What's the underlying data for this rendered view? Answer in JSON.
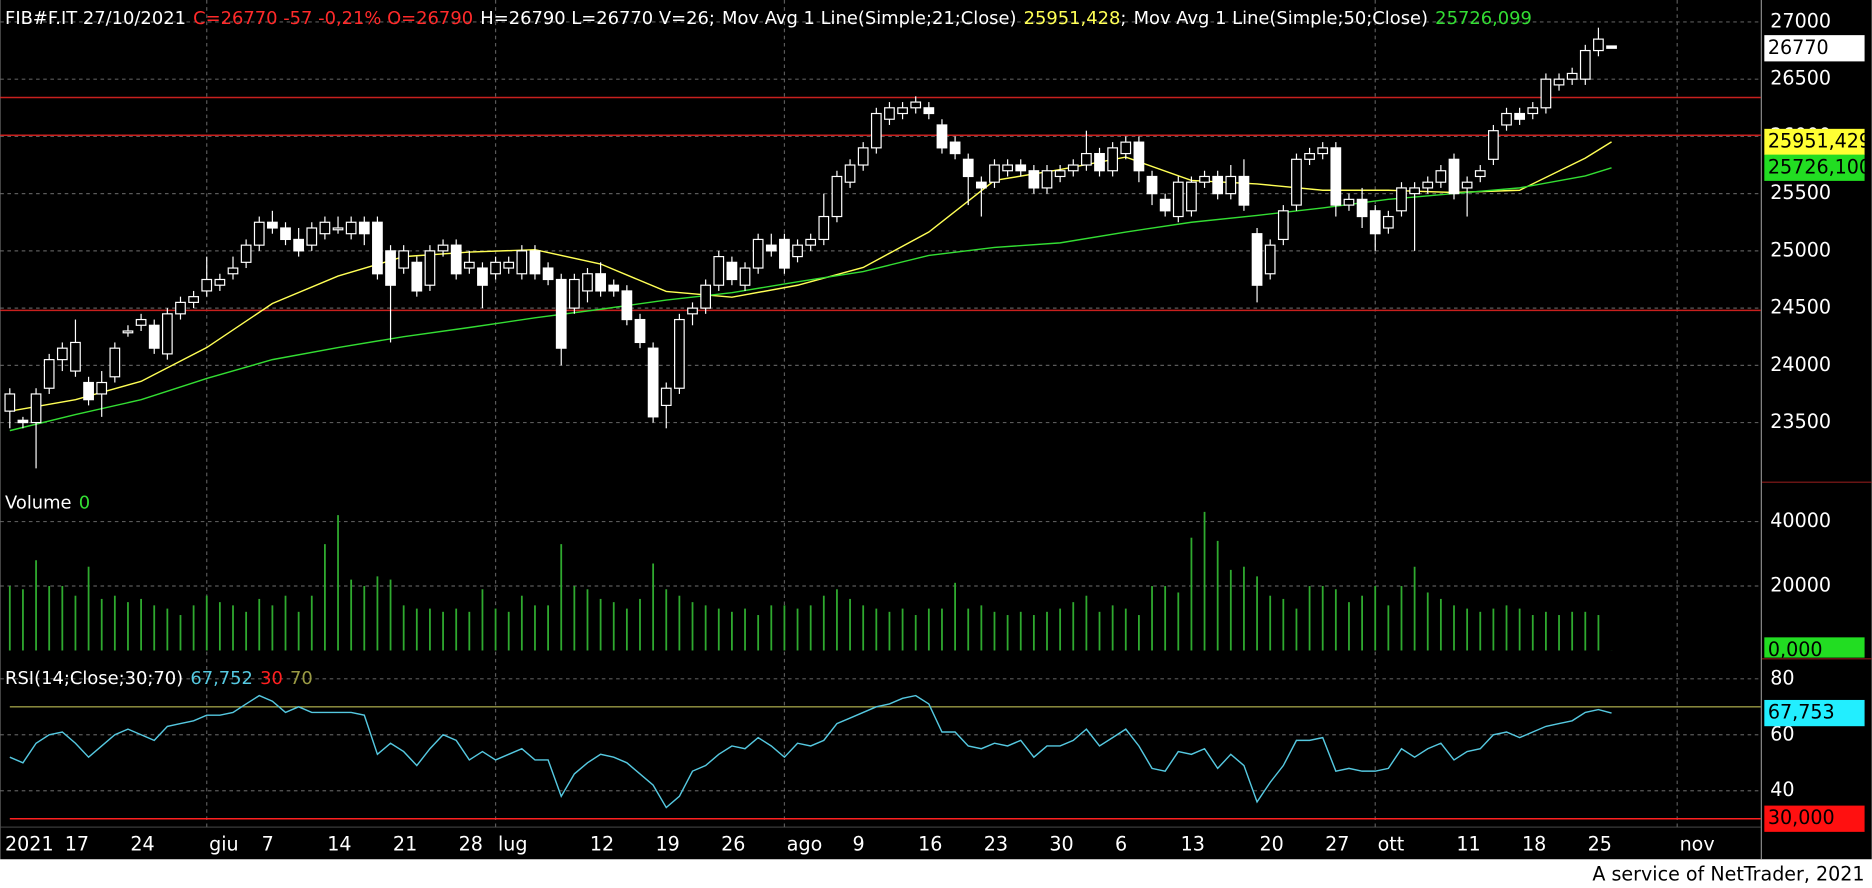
{
  "chart_data": [
    {
      "type": "candlestick",
      "title": "FIB#F.IT 27/10/2021",
      "quote": "C=26770 -57 -0,21% O=26790",
      "quote_color": "#ff2a2a",
      "stats": "H=26790 L=26770 V=26;",
      "separator": ";",
      "categories": [
        "2021",
        null,
        null,
        null,
        "17",
        null,
        null,
        null,
        null,
        "24",
        null,
        null,
        null,
        null,
        null,
        "giu",
        null,
        null,
        null,
        "7",
        null,
        null,
        null,
        null,
        "14",
        null,
        null,
        null,
        null,
        "21",
        null,
        null,
        null,
        null,
        "28",
        null,
        null,
        "lug",
        null,
        null,
        null,
        null,
        null,
        null,
        "12",
        null,
        null,
        null,
        null,
        "19",
        null,
        null,
        null,
        null,
        "26",
        null,
        null,
        null,
        null,
        "ago",
        null,
        null,
        null,
        null,
        "9",
        null,
        null,
        null,
        null,
        "16",
        null,
        null,
        null,
        null,
        "23",
        null,
        null,
        null,
        null,
        "30",
        null,
        null,
        null,
        null,
        "6",
        null,
        null,
        null,
        null,
        "13",
        null,
        null,
        null,
        null,
        null,
        "20",
        null,
        null,
        null,
        null,
        "27",
        null,
        null,
        null,
        "ott",
        null,
        null,
        null,
        null,
        null,
        "11",
        null,
        null,
        null,
        null,
        "18",
        null,
        null,
        null,
        null,
        "25",
        null,
        null,
        null,
        null,
        null,
        null,
        "nov",
        null,
        null,
        null,
        null,
        null,
        null
      ],
      "open": [
        23600,
        23520,
        23500,
        23800,
        24050,
        23950,
        23850,
        23750,
        23900,
        24300,
        24350,
        24350,
        24100,
        24450,
        24550,
        24650,
        24700,
        24800,
        24900,
        25050,
        25250,
        25200,
        25100,
        25050,
        25150,
        25200,
        25150,
        25250,
        25250,
        25000,
        24850,
        24900,
        24700,
        25000,
        25050,
        24850,
        24850,
        24800,
        24850,
        24800,
        25000,
        24850,
        24750,
        24500,
        24650,
        24800,
        24700,
        24650,
        24400,
        24150,
        23650,
        23800,
        24450,
        24500,
        24700,
        24900,
        24700,
        24850,
        25050,
        25100,
        24950,
        25050,
        25100,
        25300,
        25600,
        25750,
        25900,
        26150,
        26200,
        26250,
        26250,
        26100,
        25950,
        25800,
        25600,
        25600,
        25700,
        25750,
        25700,
        25550,
        25650,
        25700,
        25750,
        25850,
        25700,
        25850,
        25950,
        25650,
        25450,
        25300,
        25350,
        25600,
        25650,
        25500,
        25650,
        25150,
        24800,
        25100,
        25400,
        25800,
        25850,
        25900,
        25400,
        25450,
        25350,
        25200,
        25350,
        25500,
        25550,
        25600,
        25800,
        25550,
        25650,
        25800,
        26100,
        26200,
        26200,
        26250,
        26450,
        26500,
        26500,
        26750,
        26790,
        null,
        null,
        null,
        null,
        null,
        null,
        null,
        null,
        null,
        null,
        null
      ],
      "high": [
        23800,
        23550,
        23800,
        24100,
        24200,
        24400,
        23900,
        23950,
        24200,
        24350,
        24450,
        24400,
        24500,
        24600,
        24650,
        24950,
        24800,
        24950,
        25100,
        25300,
        25350,
        25250,
        25200,
        25250,
        25300,
        25300,
        25300,
        25300,
        25300,
        25050,
        25050,
        24950,
        25050,
        25100,
        25100,
        25000,
        24900,
        24950,
        24950,
        25050,
        25050,
        24900,
        24800,
        24800,
        24850,
        24900,
        24750,
        24700,
        24450,
        24200,
        23850,
        24450,
        24550,
        24750,
        25000,
        24950,
        24900,
        25150,
        25150,
        25150,
        25100,
        25150,
        25500,
        25700,
        25800,
        25950,
        26250,
        26300,
        26300,
        26350,
        26300,
        26150,
        26000,
        25850,
        25650,
        25800,
        25800,
        25800,
        25750,
        25750,
        25750,
        25800,
        26050,
        25900,
        25950,
        26000,
        26000,
        25700,
        25500,
        25650,
        25650,
        25700,
        25700,
        25750,
        25800,
        25200,
        25100,
        25400,
        25850,
        25900,
        25950,
        25950,
        25500,
        25550,
        25400,
        25350,
        25600,
        25600,
        25650,
        25750,
        25850,
        25650,
        25750,
        26100,
        26250,
        26250,
        26300,
        26550,
        26550,
        26600,
        26800,
        26950,
        26790,
        null,
        null,
        null,
        null,
        null,
        null,
        null,
        null,
        null,
        null,
        null
      ],
      "low": [
        23450,
        23450,
        23100,
        23750,
        23950,
        23900,
        23650,
        23550,
        23850,
        24250,
        24300,
        24100,
        24050,
        24400,
        24500,
        24600,
        24650,
        24750,
        24850,
        25000,
        25150,
        25050,
        24950,
        25000,
        25100,
        25150,
        25100,
        25050,
        24750,
        24200,
        24800,
        24600,
        24650,
        24950,
        24750,
        24800,
        24500,
        24750,
        24800,
        24750,
        24750,
        24700,
        24000,
        24450,
        24550,
        24600,
        24600,
        24350,
        24150,
        23500,
        23450,
        23750,
        24350,
        24450,
        24650,
        24700,
        24650,
        24800,
        24950,
        24800,
        24900,
        25000,
        25050,
        25250,
        25550,
        25700,
        25850,
        26100,
        26150,
        26200,
        26150,
        25850,
        25800,
        25400,
        25300,
        25550,
        25650,
        25650,
        25500,
        25500,
        25600,
        25650,
        25700,
        25650,
        25650,
        25800,
        25600,
        25400,
        25300,
        25250,
        25300,
        25550,
        25450,
        25450,
        25350,
        24550,
        24750,
        25050,
        25350,
        25750,
        25800,
        25300,
        25350,
        25200,
        25000,
        25150,
        25300,
        25000,
        25500,
        25550,
        25450,
        25300,
        25600,
        25750,
        26050,
        26100,
        26150,
        26200,
        26400,
        26450,
        26450,
        26700,
        26770,
        null,
        null,
        null,
        null,
        null,
        null,
        null,
        null,
        null,
        null,
        null
      ],
      "close": [
        23750,
        23500,
        23750,
        24050,
        24150,
        24200,
        23700,
        23850,
        24150,
        24300,
        24400,
        24150,
        24450,
        24550,
        24600,
        24750,
        24750,
        24850,
        25050,
        25250,
        25200,
        25100,
        25000,
        25200,
        25250,
        25200,
        25250,
        25150,
        24800,
        24700,
        25000,
        24650,
        25000,
        25050,
        24800,
        24900,
        24700,
        24900,
        24900,
        25000,
        24800,
        24750,
        24150,
        24750,
        24800,
        24650,
        24650,
        24400,
        24200,
        23550,
        23800,
        24400,
        24500,
        24700,
        24950,
        24750,
        24850,
        25100,
        25000,
        24850,
        25050,
        25100,
        25300,
        25650,
        25750,
        25900,
        26200,
        26250,
        26250,
        26300,
        26200,
        25900,
        25850,
        25650,
        25550,
        25750,
        25750,
        25700,
        25550,
        25700,
        25700,
        25750,
        25850,
        25700,
        25900,
        25950,
        25700,
        25500,
        25350,
        25600,
        25600,
        25650,
        25500,
        25650,
        25400,
        24700,
        25050,
        25350,
        25800,
        25850,
        25900,
        25400,
        25450,
        25300,
        25150,
        25300,
        25550,
        25550,
        25600,
        25700,
        25500,
        25600,
        25700,
        26050,
        26200,
        26150,
        26250,
        26500,
        26500,
        26550,
        26750,
        26850,
        26770,
        null,
        null,
        null,
        null,
        null,
        null,
        null,
        null,
        null,
        null,
        null
      ],
      "overlays": [
        {
          "name": "Mov Avg 1 Line(Simple;21;Close)",
          "color": "#ffff55",
          "last_label": "25951,428",
          "x": [
            0,
            5,
            10,
            15,
            20,
            25,
            30,
            35,
            40,
            45,
            50,
            55,
            60,
            65,
            70,
            75,
            80,
            85,
            90,
            95,
            100,
            105,
            110,
            115,
            120,
            122
          ],
          "values": [
            23600,
            23700,
            23860,
            24155,
            24540,
            24780,
            24950,
            24990,
            25010,
            24885,
            24645,
            24595,
            24700,
            24855,
            25165,
            25615,
            25710,
            25820,
            25615,
            25585,
            25530,
            25530,
            25510,
            25530,
            25810,
            25951.428
          ]
        },
        {
          "name": "Mov Avg 1 Line(Simple;50;Close)",
          "color": "#33dd33",
          "last_label": "25726,099",
          "x": [
            0,
            5,
            10,
            15,
            20,
            25,
            30,
            35,
            40,
            45,
            50,
            55,
            60,
            65,
            70,
            75,
            80,
            85,
            90,
            95,
            100,
            105,
            110,
            115,
            120,
            122
          ],
          "values": [
            23430,
            23570,
            23700,
            23885,
            24050,
            24155,
            24250,
            24330,
            24415,
            24490,
            24570,
            24635,
            24730,
            24820,
            24960,
            25030,
            25070,
            25165,
            25250,
            25310,
            25375,
            25450,
            25500,
            25550,
            25655,
            25726.099
          ]
        }
      ],
      "hlines": {
        "color": "#c8201e",
        "values": [
          26340,
          26010,
          24480
        ]
      },
      "up_fill": "#000000",
      "down_fill": "#ffffff",
      "candle_color": "#ffffff",
      "ylim": [
        23000,
        27150
      ],
      "yticks": [
        23500,
        24000,
        24500,
        25000,
        25500,
        26000,
        26500,
        27000
      ],
      "grid": true,
      "badges": [
        {
          "value": 26770,
          "color": "#ffffff",
          "text_color": "#000000"
        },
        {
          "value": 25951.429,
          "label": "25951,429",
          "color": "#ffff33",
          "text_color": "#000000"
        },
        {
          "value": 25726.1,
          "label": "25726,100",
          "color": "#22dd22",
          "text_color": "#000000"
        }
      ]
    },
    {
      "type": "bar",
      "title": "Volume",
      "legend_value": 0,
      "legend_color": "#33dd33",
      "color": "#2faa2f",
      "values": [
        20000,
        19000,
        28000,
        20000,
        20000,
        17000,
        26000,
        16000,
        17000,
        15000,
        16000,
        14000,
        13000,
        11000,
        14000,
        17000,
        15000,
        14000,
        12000,
        16000,
        14000,
        17000,
        12000,
        17000,
        33000,
        42000,
        22000,
        20000,
        23000,
        22000,
        14000,
        13000,
        13000,
        12000,
        13000,
        12000,
        19000,
        13000,
        12000,
        17000,
        14000,
        14000,
        33000,
        20000,
        19000,
        16000,
        15000,
        13000,
        16000,
        27000,
        19000,
        17000,
        15000,
        14000,
        13000,
        12000,
        13000,
        11000,
        14000,
        14000,
        13000,
        14000,
        17000,
        19000,
        16000,
        14000,
        13000,
        12000,
        13000,
        11000,
        13000,
        13000,
        21000,
        13000,
        14000,
        12000,
        11000,
        12000,
        11000,
        12000,
        13000,
        15000,
        17000,
        12000,
        14000,
        13000,
        11000,
        20000,
        20000,
        18000,
        35000,
        43000,
        34000,
        25000,
        26000,
        23000,
        17000,
        16000,
        13000,
        20000,
        20000,
        19000,
        15000,
        17000,
        20000,
        14000,
        20000,
        26000,
        18000,
        16000,
        14000,
        13000,
        12000,
        13000,
        14000,
        13000,
        11000,
        12000,
        11000,
        12000,
        12000,
        11000,
        26,
        null,
        null,
        null,
        null,
        null,
        null,
        null,
        null,
        null,
        null,
        null
      ],
      "ylim": [
        0,
        50000
      ],
      "yticks": [
        20000,
        40000
      ],
      "grid": true,
      "badges": [
        {
          "value": 0,
          "label": "0,000",
          "color": "#22dd22",
          "text_color": "#000000"
        }
      ]
    },
    {
      "type": "line",
      "title": "RSI(14;Close;30;70)",
      "series": [
        {
          "color": "#55c8e0",
          "last_label": "67,752",
          "values": [
            52,
            50,
            57,
            60,
            61,
            57,
            52,
            56,
            60,
            62,
            60,
            58,
            63,
            64,
            65,
            67,
            67,
            68,
            71,
            74,
            72,
            68,
            70,
            68,
            68,
            68,
            68,
            67,
            53,
            57,
            54,
            49,
            55,
            60,
            58,
            51,
            54,
            51,
            53,
            55,
            51,
            51,
            38,
            46,
            50,
            53,
            52,
            50,
            46,
            42,
            34,
            38,
            47,
            49,
            53,
            56,
            55,
            59,
            56,
            52,
            57,
            56,
            58,
            64,
            66,
            68,
            70,
            71,
            73,
            74,
            71,
            61,
            61,
            56,
            55,
            57,
            56,
            58,
            52,
            56,
            56,
            58,
            62,
            56,
            59,
            62,
            56,
            48,
            47,
            54,
            53,
            55,
            48,
            53,
            49,
            36,
            43,
            49,
            58,
            58,
            59,
            47,
            48,
            47,
            47,
            48,
            55,
            52,
            55,
            57,
            51,
            54,
            55,
            60,
            61,
            59,
            61,
            63,
            64,
            65,
            68,
            69,
            67.752,
            null,
            null,
            null,
            null,
            null,
            null,
            null,
            null,
            null,
            null,
            null
          ]
        }
      ],
      "levels": [
        {
          "value": 30,
          "color": "#ff2020"
        },
        {
          "value": 70,
          "color": "#9a9a44"
        }
      ],
      "ylim": [
        27,
        85
      ],
      "yticks": [
        40,
        60,
        80
      ],
      "grid": true,
      "badges": [
        {
          "value": 67.753,
          "label": "67,753",
          "color": "#22eeff",
          "text_color": "#000000"
        },
        {
          "value": 30,
          "label": "30,000",
          "color": "#ff1010",
          "text_color": "#000000"
        }
      ]
    }
  ],
  "footer": "A service of NetTrader, 2021"
}
